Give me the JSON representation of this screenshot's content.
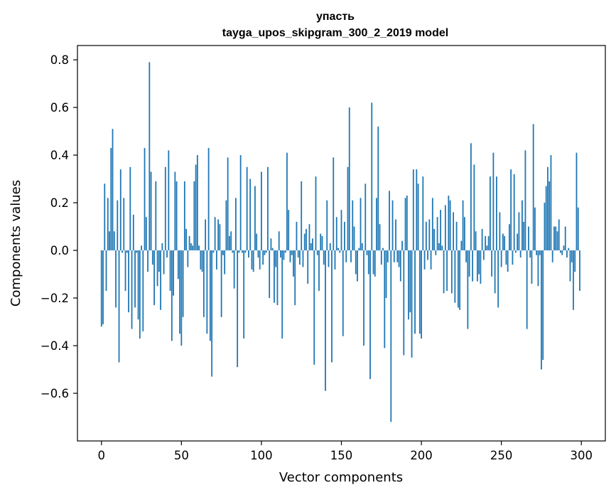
{
  "chart_data": {
    "type": "bar",
    "title": "упасть",
    "subtitle": "tayga_upos_skipgram_300_2_2019 model",
    "xlabel": "Vector components",
    "ylabel": "Components values",
    "xlim": [
      -15,
      315
    ],
    "ylim": [
      -0.8,
      0.86
    ],
    "xticks": [
      0,
      50,
      100,
      150,
      200,
      250,
      300
    ],
    "yticks": [
      -0.6,
      -0.4,
      -0.2,
      0.0,
      0.2,
      0.4,
      0.6,
      0.8
    ],
    "xtick_labels": [
      "0",
      "50",
      "100",
      "150",
      "200",
      "250",
      "300"
    ],
    "ytick_labels": [
      "−0.6",
      "−0.4",
      "−0.2",
      "0.0",
      "0.2",
      "0.4",
      "0.6",
      "0.8"
    ],
    "bar_color": "#1f77b4",
    "grid": false,
    "values": [
      -0.32,
      -0.31,
      0.28,
      -0.17,
      0.22,
      0.08,
      0.43,
      0.51,
      0.08,
      -0.24,
      0.21,
      -0.47,
      0.34,
      -0.01,
      0.22,
      -0.17,
      -0.01,
      -0.26,
      0.35,
      -0.33,
      0.15,
      -0.24,
      -0.01,
      -0.29,
      -0.37,
      0.02,
      -0.34,
      0.43,
      0.14,
      -0.09,
      0.79,
      0.33,
      -0.06,
      -0.23,
      0.29,
      -0.15,
      -0.09,
      -0.25,
      0.03,
      -0.1,
      0.35,
      -0.03,
      0.42,
      -0.17,
      -0.38,
      -0.19,
      0.33,
      0.29,
      -0.12,
      -0.35,
      -0.4,
      -0.28,
      0.29,
      0.09,
      -0.07,
      0.06,
      0.03,
      0.02,
      0.29,
      0.36,
      0.4,
      0.02,
      -0.08,
      -0.09,
      -0.28,
      0.13,
      -0.35,
      0.43,
      -0.38,
      -0.53,
      -0.01,
      0.14,
      -0.08,
      0.13,
      0.11,
      -0.28,
      -0.02,
      -0.1,
      0.21,
      0.39,
      0.06,
      0.08,
      -0.01,
      -0.16,
      0.22,
      -0.49,
      -0.01,
      0.4,
      -0.01,
      -0.37,
      -0.01,
      0.35,
      -0.03,
      0.3,
      -0.08,
      -0.09,
      0.27,
      0.07,
      -0.03,
      -0.08,
      0.33,
      -0.06,
      -0.02,
      -0.01,
      0.35,
      -0.2,
      0.05,
      0.01,
      -0.22,
      -0.07,
      -0.23,
      0.08,
      -0.03,
      -0.37,
      -0.04,
      -0.01,
      0.41,
      0.17,
      -0.05,
      -0.02,
      -0.11,
      -0.23,
      0.12,
      -0.03,
      -0.06,
      0.29,
      -0.07,
      0.07,
      0.09,
      -0.14,
      0.11,
      0.03,
      0.05,
      -0.48,
      0.31,
      -0.02,
      -0.17,
      0.07,
      0.06,
      -0.06,
      -0.59,
      0.21,
      -0.07,
      0.03,
      -0.47,
      0.39,
      -0.08,
      0.14,
      0.01,
      -0.01,
      0.17,
      -0.36,
      0.12,
      -0.05,
      0.35,
      0.6,
      -0.05,
      0.21,
      0.1,
      -0.1,
      -0.13,
      0.01,
      0.22,
      0.03,
      -0.4,
      0.28,
      -0.02,
      -0.1,
      -0.54,
      0.62,
      -0.1,
      -0.11,
      0.22,
      0.52,
      0.11,
      -0.06,
      0.01,
      -0.41,
      -0.2,
      -0.05,
      0.25,
      -0.72,
      0.21,
      -0.05,
      0.13,
      -0.05,
      -0.07,
      -0.13,
      0.04,
      -0.44,
      0.22,
      0.23,
      -0.29,
      -0.26,
      -0.45,
      0.34,
      -0.35,
      0.34,
      0.28,
      -0.35,
      -0.37,
      0.31,
      -0.08,
      0.12,
      -0.04,
      0.13,
      -0.08,
      0.22,
      0.09,
      -0.02,
      0.14,
      0.03,
      0.17,
      0.02,
      -0.18,
      0.19,
      -0.17,
      0.23,
      0.21,
      -0.18,
      0.16,
      -0.22,
      0.12,
      -0.24,
      -0.25,
      0.04,
      0.21,
      0.14,
      -0.05,
      -0.33,
      -0.11,
      0.45,
      -0.13,
      0.36,
      0.08,
      -0.13,
      -0.1,
      -0.14,
      0.09,
      -0.04,
      0.06,
      0.02,
      0.06,
      0.31,
      -0.11,
      0.41,
      -0.18,
      0.31,
      -0.24,
      0.16,
      -0.07,
      0.07,
      0.06,
      -0.06,
      -0.09,
      0.11,
      0.34,
      -0.06,
      0.32,
      -0.01,
      0.07,
      0.16,
      -0.03,
      0.21,
      0.12,
      0.42,
      -0.33,
      0.1,
      -0.03,
      -0.14,
      0.53,
      0.18,
      -0.02,
      -0.15,
      -0.02,
      -0.5,
      -0.46,
      0.2,
      0.27,
      0.35,
      0.29,
      0.4,
      -0.05,
      0.1,
      0.1,
      0.08,
      0.13,
      -0.01,
      -0.02,
      0.02,
      0.1,
      -0.03,
      0.01,
      -0.13,
      -0.05,
      -0.25,
      -0.09,
      0.41,
      0.18,
      -0.17
    ]
  }
}
